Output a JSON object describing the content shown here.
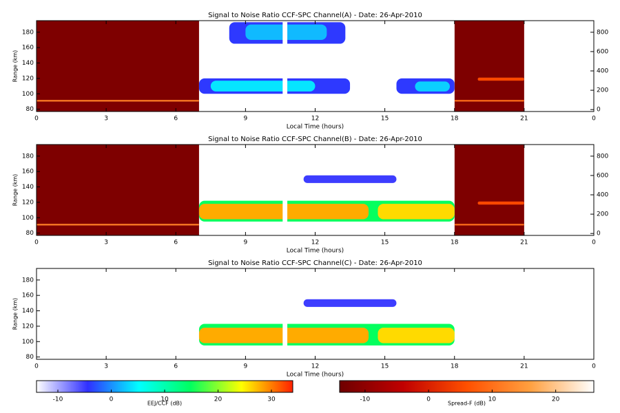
{
  "chart_data": [
    {
      "type": "heatmap",
      "title": "Signal to Noise Ratio CCF-SPC Channel(A) - Date: 26-Apr-2010",
      "xlabel": "Local Time (hours)",
      "ylabel": "Range (km)",
      "xlim": [
        0,
        24
      ],
      "xticks": [
        0,
        3,
        6,
        9,
        12,
        15,
        18,
        21,
        {
          "value": 24,
          "label": "0"
        }
      ],
      "ylim": [
        77,
        195
      ],
      "yticks": [
        80,
        100,
        120,
        140,
        160,
        180
      ],
      "y2lim": [
        -20,
        920
      ],
      "y2ticks": [
        0,
        200,
        400,
        600,
        800
      ],
      "eej_cells": [
        [
          7,
          18,
          77,
          195,
          -14
        ],
        [
          8.3,
          13.3,
          165,
          193,
          -4
        ],
        [
          9,
          12.5,
          170,
          190,
          2
        ],
        [
          7,
          13.5,
          100,
          120,
          -4
        ],
        [
          7.5,
          12,
          103,
          117,
          4
        ],
        [
          15.5,
          18,
          100,
          120,
          -4
        ],
        [
          16.3,
          17.8,
          103,
          116,
          3
        ],
        [
          10.6,
          10.8,
          77,
          195,
          -14
        ]
      ],
      "spread_f_cells": [
        [
          0,
          7,
          77,
          195,
          -12
        ],
        [
          18,
          21,
          77,
          195,
          -12
        ],
        [
          0,
          7,
          90,
          92,
          12
        ],
        [
          18,
          21,
          90,
          92,
          10
        ],
        [
          19,
          21,
          117,
          121,
          5
        ]
      ]
    },
    {
      "type": "heatmap",
      "title": "Signal to Noise Ratio CCF-SPC Channel(B) - Date: 26-Apr-2010",
      "xlabel": "Local Time (hours)",
      "ylabel": "Range (km)",
      "xlim": [
        0,
        24
      ],
      "xticks": [
        0,
        3,
        6,
        9,
        12,
        15,
        18,
        21,
        {
          "value": 24,
          "label": "0"
        }
      ],
      "ylim": [
        77,
        195
      ],
      "yticks": [
        80,
        100,
        120,
        140,
        160,
        180
      ],
      "y2lim": [
        -20,
        920
      ],
      "y2ticks": [
        0,
        200,
        400,
        600,
        800
      ],
      "eej_cells": [
        [
          7,
          18,
          77,
          195,
          -14
        ],
        [
          7,
          18,
          95,
          122,
          15
        ],
        [
          7,
          14.3,
          98,
          118,
          28
        ],
        [
          14.7,
          18,
          98,
          118,
          26
        ],
        [
          11.5,
          15.5,
          145,
          155,
          -5
        ],
        [
          10.6,
          10.8,
          77,
          195,
          -14
        ]
      ],
      "spread_f_cells": [
        [
          0,
          7,
          77,
          195,
          -12
        ],
        [
          18,
          21,
          77,
          195,
          -12
        ],
        [
          0,
          7,
          90,
          92,
          12
        ],
        [
          18,
          21,
          90,
          92,
          10
        ],
        [
          19,
          21,
          117,
          121,
          5
        ]
      ]
    },
    {
      "type": "heatmap",
      "title": "Signal to Noise Ratio CCF-SPC Channel(C) - Date: 26-Apr-2010",
      "xlabel": "Local Time (hours)",
      "ylabel": "Range (km)",
      "xlim": [
        0,
        24
      ],
      "xticks": [
        0,
        3,
        6,
        9,
        12,
        15,
        18,
        21,
        {
          "value": 24,
          "label": "0"
        }
      ],
      "ylim": [
        77,
        195
      ],
      "yticks": [
        80,
        100,
        120,
        140,
        160,
        180
      ],
      "eej_cells": [
        [
          7,
          18,
          95,
          123,
          15
        ],
        [
          7,
          14.3,
          98,
          118,
          28
        ],
        [
          14.7,
          18,
          98,
          118,
          26
        ],
        [
          11.5,
          15.5,
          145,
          155,
          -5
        ],
        [
          10.6,
          10.8,
          77,
          195,
          -14
        ]
      ],
      "spread_f_cells": []
    },
    {
      "type": "colorbar",
      "label": "EEJ/CCF (dB)",
      "xlim": [
        -14,
        34
      ],
      "xticks": [
        -10,
        0,
        10,
        20,
        30
      ],
      "colors": [
        "#ffffff",
        "#3030ff",
        "#00ffff",
        "#00ff60",
        "#ffff00",
        "#ff2000"
      ]
    },
    {
      "type": "colorbar",
      "label": "Spread-F (dB)",
      "xlim": [
        -14,
        26
      ],
      "xticks": [
        -10,
        0,
        10,
        20
      ],
      "colors": [
        "#6e0000",
        "#c00000",
        "#ff5000",
        "#ffa040",
        "#ffffff"
      ]
    }
  ]
}
